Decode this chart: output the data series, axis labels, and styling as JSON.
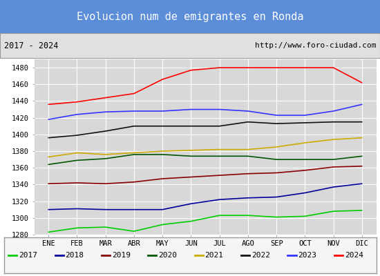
{
  "title": "Evolucion num de emigrantes en Ronda",
  "subtitle_left": "2017 - 2024",
  "subtitle_right": "http://www.foro-ciudad.com",
  "x_labels": [
    "ENE",
    "FEB",
    "MAR",
    "ABR",
    "MAY",
    "JUN",
    "JUL",
    "AGO",
    "SEP",
    "OCT",
    "NOV",
    "DIC"
  ],
  "ylim": [
    1280,
    1490
  ],
  "yticks": [
    1280,
    1300,
    1320,
    1340,
    1360,
    1380,
    1400,
    1420,
    1440,
    1460,
    1480
  ],
  "series": {
    "2017": {
      "color": "#00cc00",
      "data": [
        1283,
        1288,
        1289,
        1284,
        1292,
        1296,
        1303,
        1303,
        1301,
        1302,
        1308,
        1309
      ]
    },
    "2018": {
      "color": "#000099",
      "data": [
        1310,
        1311,
        1310,
        1310,
        1310,
        1317,
        1322,
        1324,
        1325,
        1330,
        1337,
        1341
      ]
    },
    "2019": {
      "color": "#880000",
      "data": [
        1341,
        1342,
        1341,
        1343,
        1347,
        1349,
        1351,
        1353,
        1354,
        1357,
        1361,
        1362
      ]
    },
    "2020": {
      "color": "#005500",
      "data": [
        1364,
        1369,
        1371,
        1376,
        1376,
        1374,
        1374,
        1374,
        1370,
        1370,
        1370,
        1374
      ]
    },
    "2021": {
      "color": "#ccaa00",
      "data": [
        1373,
        1378,
        1376,
        1378,
        1380,
        1381,
        1382,
        1382,
        1385,
        1390,
        1394,
        1396
      ]
    },
    "2022": {
      "color": "#111111",
      "data": [
        1396,
        1399,
        1404,
        1410,
        1410,
        1410,
        1410,
        1415,
        1413,
        1414,
        1415,
        1415
      ]
    },
    "2023": {
      "color": "#3333ff",
      "data": [
        1418,
        1424,
        1427,
        1428,
        1428,
        1430,
        1430,
        1428,
        1423,
        1423,
        1428,
        1436
      ]
    },
    "2024": {
      "color": "#ff0000",
      "data": [
        1436,
        1439,
        1444,
        1449,
        1466,
        1477,
        1480,
        1480,
        1480,
        1480,
        1480,
        1462
      ]
    }
  },
  "title_bg_color": "#5b8dd9",
  "title_text_color": "#ffffff",
  "subtitle_bg_color": "#e0e0e0",
  "plot_bg_color": "#d8d8d8",
  "grid_color": "#ffffff",
  "legend_bg_color": "#f5f5f5",
  "border_color": "#999999"
}
